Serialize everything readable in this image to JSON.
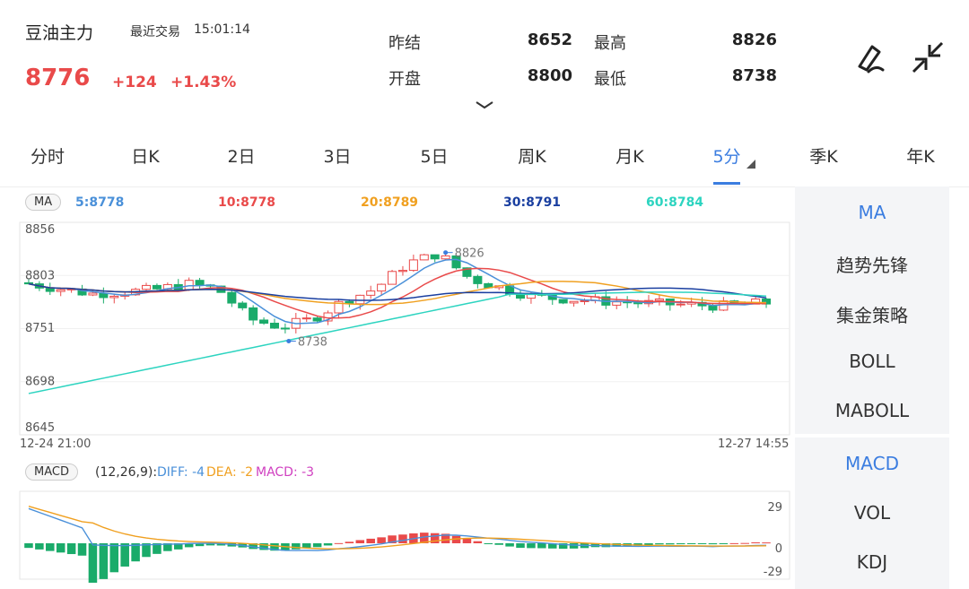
{
  "header": {
    "name": "豆油主力",
    "trade_label": "最近交易",
    "trade_time": "15:01:14",
    "price": "8776",
    "change": "+124",
    "change_pct": "+1.43%"
  },
  "stats": [
    {
      "label": "昨结",
      "value": "8652"
    },
    {
      "label": "最高",
      "value": "8826"
    },
    {
      "label": "开盘",
      "value": "8800"
    },
    {
      "label": "最低",
      "value": "8738"
    }
  ],
  "tabs": [
    {
      "label": "分时"
    },
    {
      "label": "日K"
    },
    {
      "label": "2日"
    },
    {
      "label": "3日"
    },
    {
      "label": "5日"
    },
    {
      "label": "周K"
    },
    {
      "label": "月K"
    },
    {
      "label": "5分"
    },
    {
      "label": "季K"
    },
    {
      "label": "年K"
    }
  ],
  "active_tab": "5分",
  "ma_legend": {
    "badge": "MA",
    "items": [
      {
        "text": "5:8778",
        "color": "#4a90d9"
      },
      {
        "text": "10:8778",
        "color": "#e94a4a"
      },
      {
        "text": "20:8789",
        "color": "#f0a020"
      },
      {
        "text": "30:8791",
        "color": "#1a3fa0"
      },
      {
        "text": "60:8784",
        "color": "#2dd4c0"
      }
    ]
  },
  "macd_legend": {
    "badge": "MACD",
    "params": "(12,26,9):",
    "diff": "DIFF: -4",
    "dea": "DEA: -2",
    "macd": "MACD: -3"
  },
  "main_indicators": [
    "MA",
    "趋势先锋",
    "集金策略",
    "BOLL",
    "MABOLL"
  ],
  "sub_indicators": [
    "MACD",
    "VOL",
    "KDJ"
  ],
  "chart_data": {
    "type": "candlestick",
    "y_ticks": [
      "8856",
      "8803",
      "8751",
      "8698",
      "8645"
    ],
    "ylim": [
      8645,
      8856
    ],
    "x_start_label": "12-24 21:00",
    "x_end_label": "12-27 14:55",
    "high_marker": "8826",
    "low_marker": "8738",
    "macd_ticks": [
      "29",
      "0",
      "-29"
    ],
    "colors": {
      "up": "#e94a4a",
      "down": "#1aab6a"
    }
  }
}
